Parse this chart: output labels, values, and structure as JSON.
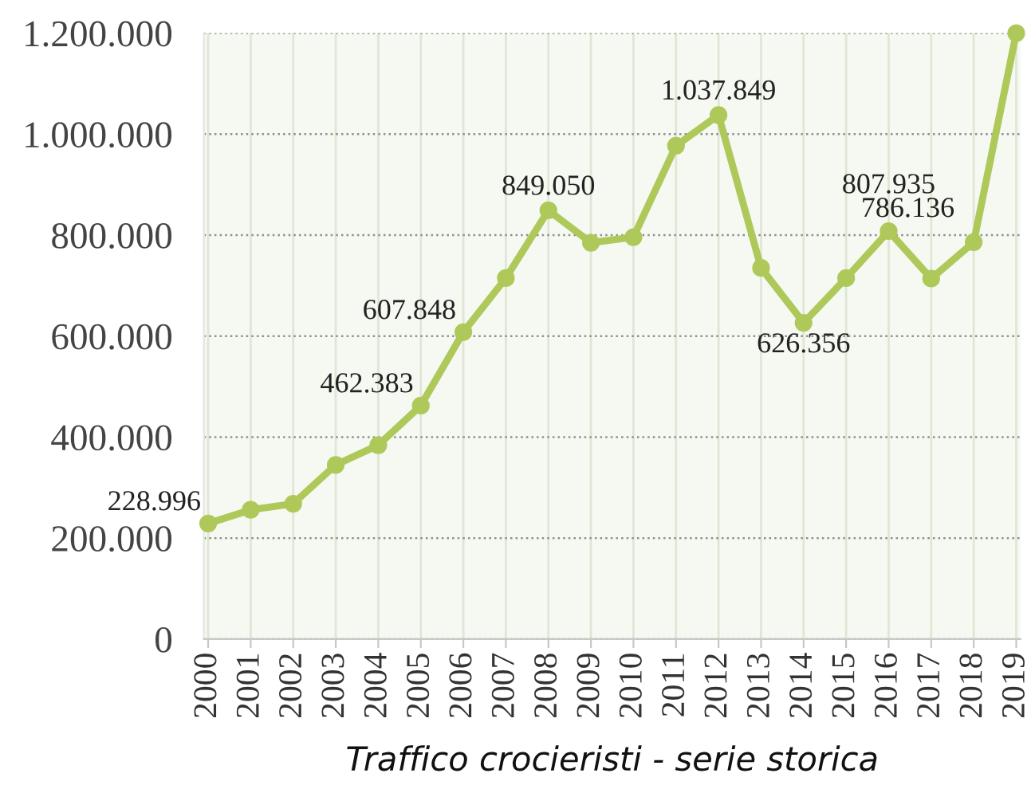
{
  "chart_data": {
    "type": "line",
    "categories": [
      "2000",
      "2001",
      "2002",
      "2003",
      "2004",
      "2005",
      "2006",
      "2007",
      "2008",
      "2009",
      "2010",
      "2011",
      "2012",
      "2013",
      "2014",
      "2015",
      "2016",
      "2017",
      "2018",
      "2019"
    ],
    "values": [
      228996,
      256000,
      268000,
      345000,
      384000,
      462383,
      607848,
      715000,
      849050,
      785000,
      796000,
      977000,
      1037849,
      735000,
      626356,
      715000,
      807935,
      714000,
      786136,
      1200000
    ],
    "value_labels": [
      "228.996",
      null,
      null,
      null,
      null,
      "462.383",
      "607.848",
      null,
      "849.050",
      null,
      null,
      null,
      "1.037.849",
      null,
      "626.356",
      null,
      "807.935",
      null,
      "786.136",
      null
    ],
    "color": "#aec95a",
    "marker": "circle",
    "line_style": "solid",
    "ylim": [
      0,
      1200000
    ],
    "yticks": [
      0,
      {
        "value": 200000,
        "label": "200.000"
      },
      {
        "value": 400000,
        "label": "400.000"
      },
      {
        "value": 600000,
        "label": "600.000"
      },
      {
        "value": 800000,
        "label": "800.000"
      },
      {
        "value": 1000000,
        "label": "1.000.000"
      },
      {
        "value": 1200000,
        "label": "1.200.000"
      }
    ],
    "grid": true,
    "annotations": [
      "Traffico crocieristi - serie storica"
    ]
  }
}
